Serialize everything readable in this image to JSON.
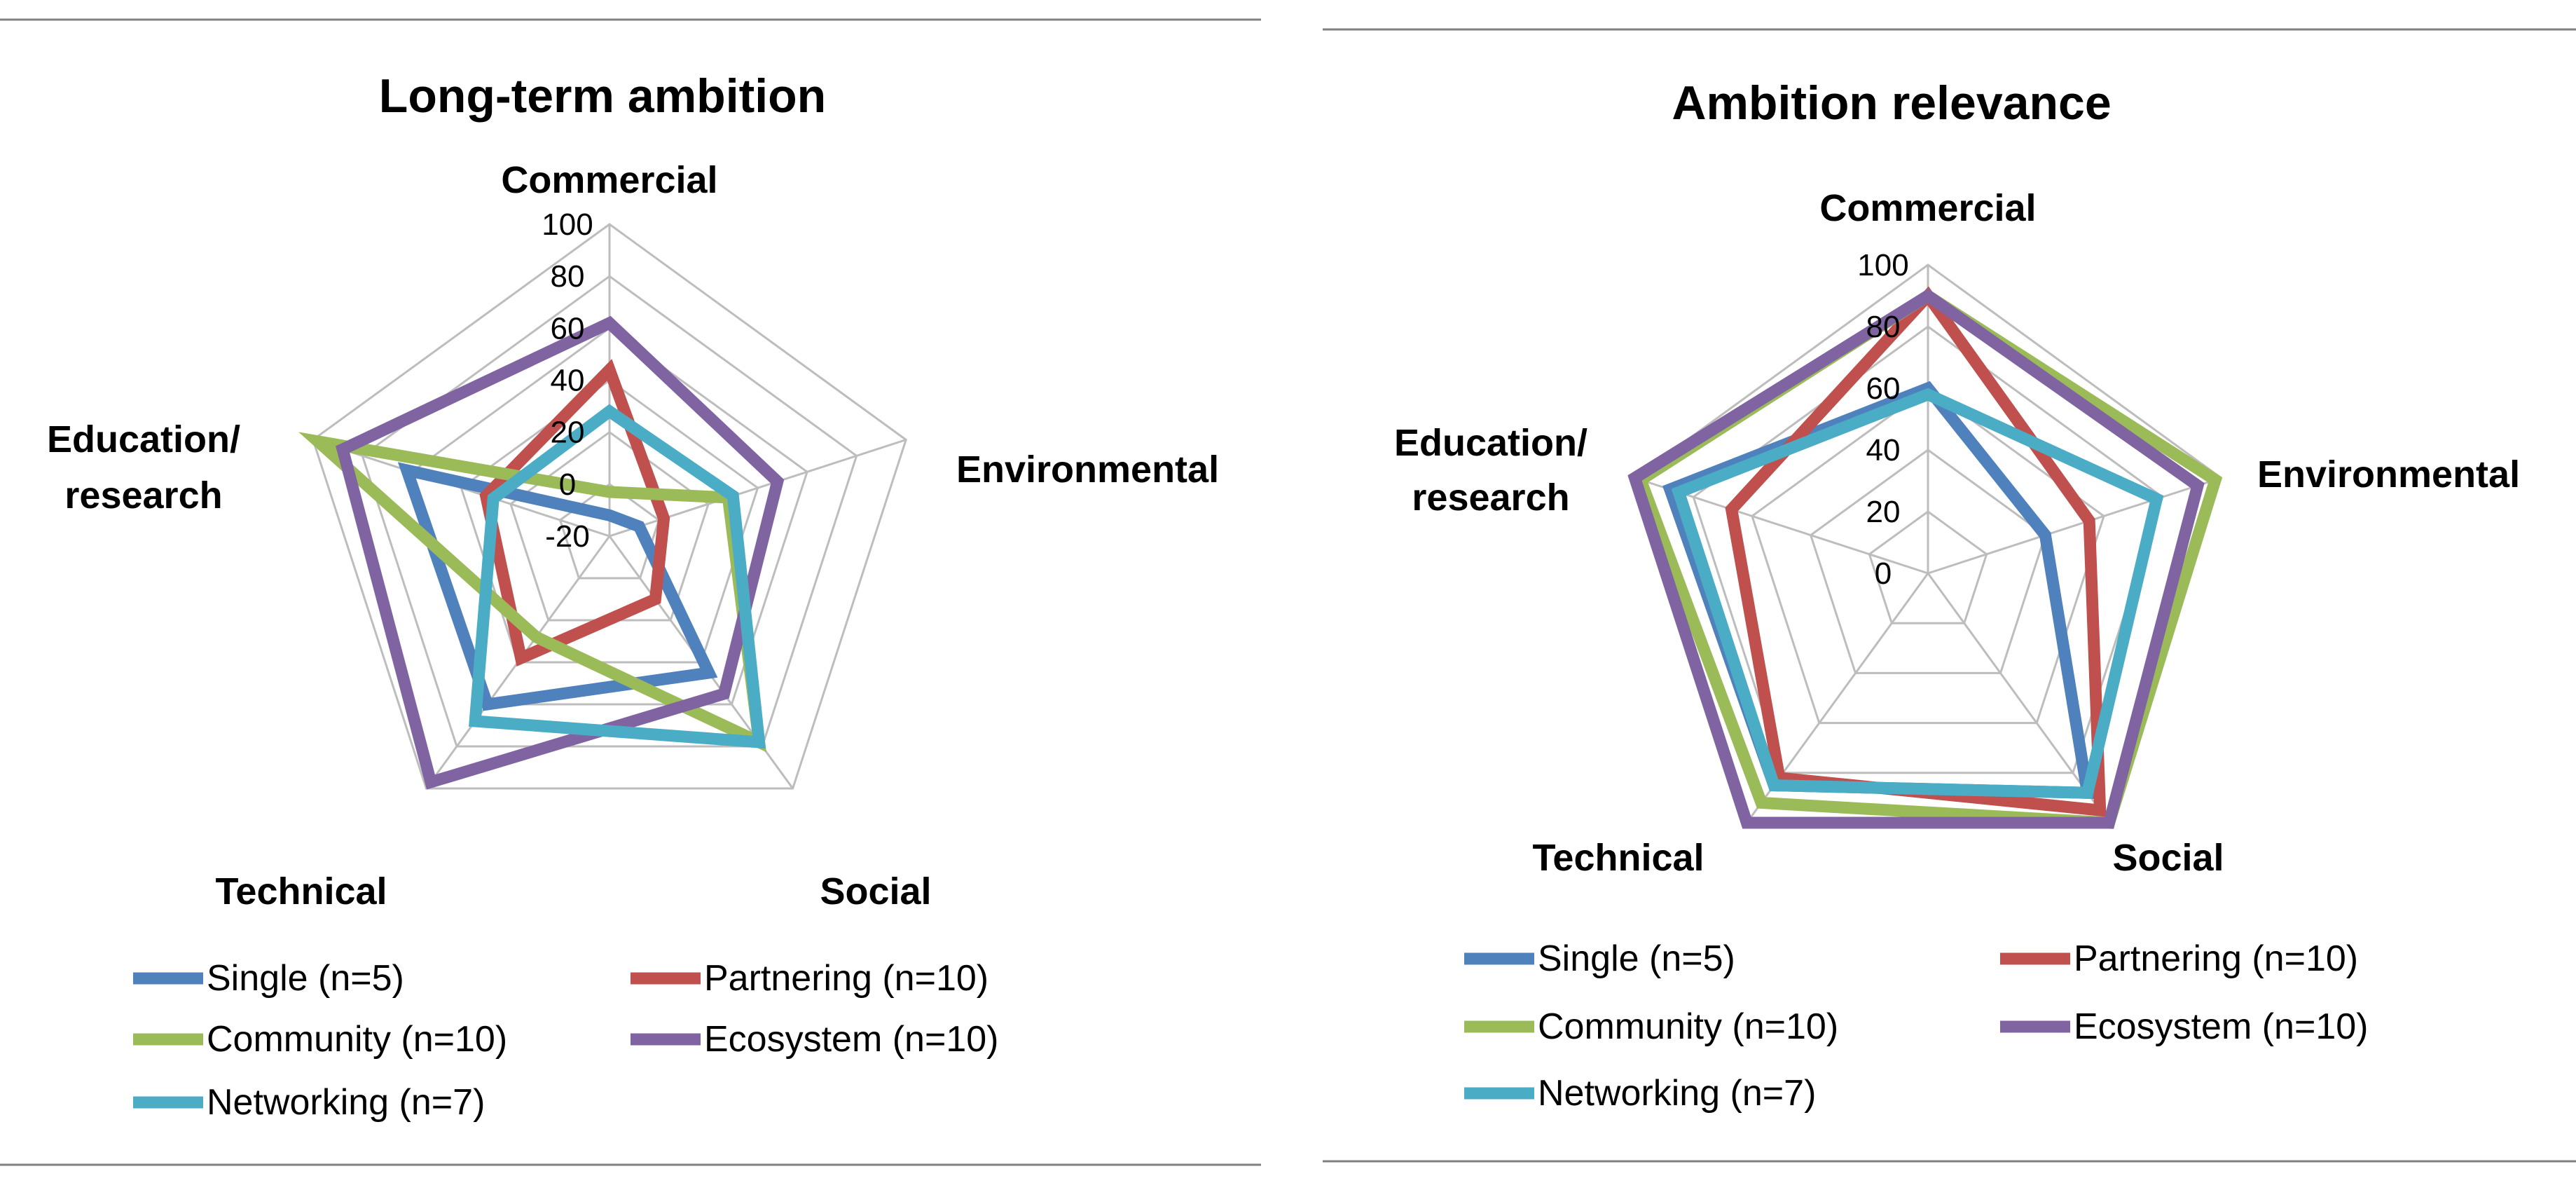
{
  "chart_data": [
    {
      "type": "radar",
      "title": "Long-term ambition",
      "axes": [
        "Commercial",
        "Environmental",
        "Social",
        "Technical",
        "Education/ research"
      ],
      "rlim": [
        -20,
        100
      ],
      "ticks": [
        -20,
        0,
        20,
        40,
        60,
        80,
        100
      ],
      "tick_labels": [
        "-20",
        "0",
        "20",
        "40",
        "60",
        "80",
        "100"
      ],
      "grid": true,
      "legend_position": "bottom",
      "series": [
        {
          "name": "Single (n=5)",
          "color": "#4f81bd",
          "values": [
            -12,
            -8,
            45,
            60,
            62
          ]
        },
        {
          "name": "Partnering (n=10)",
          "color": "#c0504d",
          "values": [
            44,
            2,
            10,
            38,
            30
          ]
        },
        {
          "name": "Community (n=10)",
          "color": "#9bbb59",
          "values": [
            -3,
            28,
            78,
            28,
            98
          ]
        },
        {
          "name": "Ecosystem (n=10)",
          "color": "#8064a2",
          "values": [
            62,
            48,
            55,
            97,
            88
          ]
        },
        {
          "name": "Networking (n=7)",
          "color": "#4bacc6",
          "values": [
            28,
            30,
            78,
            68,
            27
          ]
        }
      ]
    },
    {
      "type": "radar",
      "title": "Ambition relevance",
      "axes": [
        "Commercial",
        "Environmental",
        "Social",
        "Technical",
        "Education/ research"
      ],
      "rlim": [
        0,
        100
      ],
      "ticks": [
        0,
        20,
        40,
        60,
        80,
        100
      ],
      "tick_labels": [
        "0",
        "20",
        "40",
        "60",
        "80",
        "100"
      ],
      "grid": true,
      "legend_position": "bottom",
      "series": [
        {
          "name": "Single (n=5)",
          "color": "#4f81bd",
          "values": [
            60,
            40,
            88,
            85,
            88
          ]
        },
        {
          "name": "Partnering (n=10)",
          "color": "#c0504d",
          "values": [
            90,
            55,
            95,
            82,
            67
          ]
        },
        {
          "name": "Community (n=10)",
          "color": "#9bbb59",
          "values": [
            90,
            98,
            100,
            92,
            98
          ]
        },
        {
          "name": "Ecosystem (n=10)",
          "color": "#8064a2",
          "values": [
            90,
            92,
            100,
            100,
            100
          ]
        },
        {
          "name": "Networking (n=7)",
          "color": "#4bacc6",
          "values": [
            58,
            78,
            88,
            85,
            85
          ]
        }
      ]
    }
  ]
}
